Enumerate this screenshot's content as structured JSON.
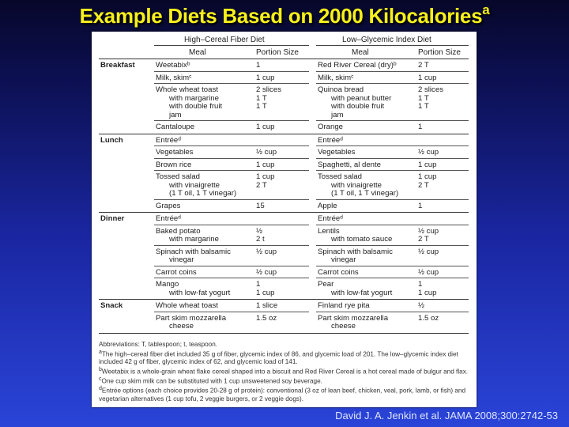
{
  "title": {
    "text": "Example Diets Based on 2000 Kilocalories",
    "sup": "a"
  },
  "table": {
    "group_headers": [
      "High–Cereal Fiber Diet",
      "Low–Glycemic Index Diet"
    ],
    "col_headers": [
      "Meal",
      "Portion Size",
      "Meal",
      "Portion Size"
    ],
    "sections": [
      {
        "name": "Breakfast",
        "rows": [
          {
            "m1": [
              "Weetabixᵇ"
            ],
            "p1": [
              "1"
            ],
            "m2": [
              "Red River Cereal (dry)ᵇ"
            ],
            "p2": [
              "2 T"
            ]
          },
          {
            "m1": [
              "Milk, skimᶜ"
            ],
            "p1": [
              "1 cup"
            ],
            "m2": [
              "Milk, skimᶜ"
            ],
            "p2": [
              "1 cup"
            ]
          },
          {
            "m1": [
              "Whole wheat toast",
              "with margarine",
              "with double fruit",
              "jam"
            ],
            "p1": [
              "2 slices",
              "1 T",
              "1 T",
              ""
            ],
            "m2": [
              "Quinoa bread",
              "with peanut butter",
              "with double fruit",
              "jam"
            ],
            "p2": [
              "2 slices",
              "1 T",
              "1 T",
              ""
            ]
          },
          {
            "m1": [
              "Cantaloupe"
            ],
            "p1": [
              "1 cup"
            ],
            "m2": [
              "Orange"
            ],
            "p2": [
              "1"
            ]
          }
        ]
      },
      {
        "name": "Lunch",
        "rows": [
          {
            "m1": [
              "Entréeᵈ"
            ],
            "p1": [
              ""
            ],
            "m2": [
              "Entréeᵈ"
            ],
            "p2": [
              ""
            ]
          },
          {
            "m1": [
              "Vegetables"
            ],
            "p1": [
              "½ cup"
            ],
            "m2": [
              "Vegetables"
            ],
            "p2": [
              "½ cup"
            ]
          },
          {
            "m1": [
              "Brown rice"
            ],
            "p1": [
              "1 cup"
            ],
            "m2": [
              "Spaghetti, al dente"
            ],
            "p2": [
              "1 cup"
            ]
          },
          {
            "m1": [
              "Tossed salad",
              "with vinaigrette",
              "(1 T oil, 1 T vinegar)"
            ],
            "p1": [
              "1 cup",
              "2 T",
              ""
            ],
            "m2": [
              "Tossed salad",
              "with vinaigrette",
              "(1 T oil, 1 T vinegar)"
            ],
            "p2": [
              "1 cup",
              "2 T",
              ""
            ]
          },
          {
            "m1": [
              "Grapes"
            ],
            "p1": [
              "15"
            ],
            "m2": [
              "Apple"
            ],
            "p2": [
              "1"
            ]
          }
        ]
      },
      {
        "name": "Dinner",
        "rows": [
          {
            "m1": [
              "Entréeᵈ"
            ],
            "p1": [
              ""
            ],
            "m2": [
              "Entréeᵈ"
            ],
            "p2": [
              ""
            ]
          },
          {
            "m1": [
              "Baked potato",
              "with margarine"
            ],
            "p1": [
              "½",
              "2 t"
            ],
            "m2": [
              "Lentils",
              "with tomato sauce"
            ],
            "p2": [
              "½ cup",
              "2 T"
            ]
          },
          {
            "m1": [
              "Spinach with balsamic",
              "vinegar"
            ],
            "p1": [
              "½ cup",
              ""
            ],
            "m2": [
              "Spinach with balsamic",
              "vinegar"
            ],
            "p2": [
              "½ cup",
              ""
            ]
          },
          {
            "m1": [
              "Carrot coins"
            ],
            "p1": [
              "½ cup"
            ],
            "m2": [
              "Carrot coins"
            ],
            "p2": [
              "½ cup"
            ]
          },
          {
            "m1": [
              "Mango",
              "with low-fat yogurt"
            ],
            "p1": [
              "1",
              "1 cup"
            ],
            "m2": [
              "Pear",
              "with low-fat yogurt"
            ],
            "p2": [
              "1",
              "1 cup"
            ]
          }
        ]
      },
      {
        "name": "Snack",
        "rows": [
          {
            "m1": [
              "Whole wheat toast"
            ],
            "p1": [
              "1 slice"
            ],
            "m2": [
              "Finland rye pita"
            ],
            "p2": [
              "½"
            ]
          },
          {
            "m1": [
              "Part skim mozzarella",
              "cheese"
            ],
            "p1": [
              "1.5 oz",
              ""
            ],
            "m2": [
              "Part skim mozzarella",
              "cheese"
            ],
            "p2": [
              "1.5 oz",
              ""
            ]
          }
        ]
      }
    ]
  },
  "footnotes": {
    "abbrev": "Abbreviations: T, tablespoon; t, teaspoon.",
    "a_mark": "a",
    "a": "The high–cereal fiber diet included 35 g of fiber, glycemic index of 86, and glycemic load of 201. The low–glycemic index diet included 42 g of fiber, glycemic index of 62, and glycemic load of 141.",
    "b_mark": "b",
    "b": "Weetabix is a whole-grain wheat flake cereal shaped into a biscuit and Red River Cereal is a hot cereal made of bulgur and flax.",
    "c_mark": "c",
    "c": "One cup skim milk can be substituted with 1 cup unsweetened soy beverage.",
    "d_mark": "d",
    "d": "Entrée options (each choice provides 20-28 g of protein): conventional (3 oz of lean beef, chicken, veal, pork, lamb, or fish) and vegetarian alternatives (1 cup tofu, 2 veggie burgers, or 2 veggie dogs)."
  },
  "citation": "David J. A. Jenkin et al. JAMA 2008;300:2742-53"
}
